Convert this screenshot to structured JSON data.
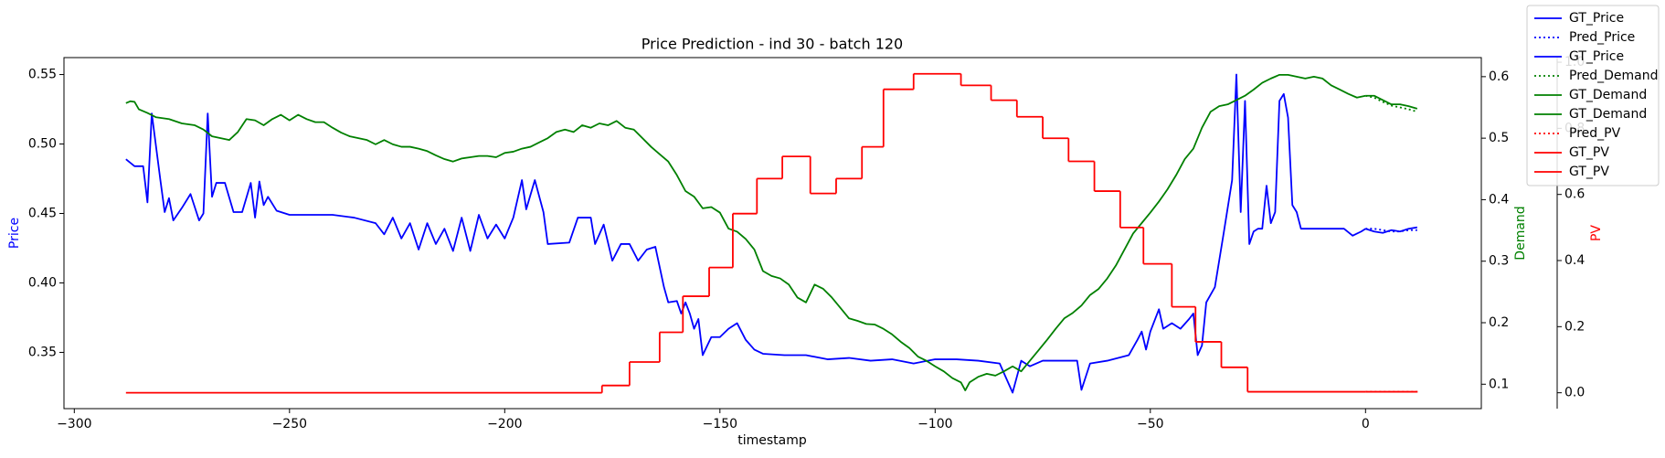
{
  "chart_data": {
    "type": "line",
    "title": "Price Prediction - ind 30 - batch 120",
    "xlabel": "timestamp",
    "ylabel": "Price",
    "ylabel_color": "#0000ff",
    "y2label": "Demand",
    "y2label_color": "#008000",
    "y3label": "PV",
    "y3label_color": "#ff0000",
    "xlim": [
      -302.4,
      26.9
    ],
    "ylim": [
      0.3095,
      0.5622
    ],
    "y2lim": [
      0.0603,
      0.631
    ],
    "y3lim": [
      -0.048,
      1.014
    ],
    "xticks": [
      {
        "value": -300,
        "label": "−300"
      },
      {
        "value": -250,
        "label": "−250"
      },
      {
        "value": -200,
        "label": "−200"
      },
      {
        "value": -150,
        "label": "−150"
      },
      {
        "value": -100,
        "label": "−100"
      },
      {
        "value": -50,
        "label": "−50"
      },
      0
    ],
    "yticks": [
      0.35,
      {
        "value": 0.4,
        "label": "0.40"
      },
      0.45,
      {
        "value": 0.5,
        "label": "0.50"
      },
      0.55
    ],
    "y2ticks": [
      0.1,
      0.2,
      0.3,
      0.4,
      0.5,
      0.6
    ],
    "y3ticks": [
      {
        "value": 0,
        "label": "0.0"
      },
      0.2,
      0.4,
      0.6,
      0.8,
      {
        "value": 1,
        "label": "1.0"
      }
    ],
    "legend": "upper right",
    "series": [
      {
        "name": "GT_Price",
        "color": "#0000ff",
        "linestyle": "solid",
        "axis": "y",
        "x": [
          -288,
          -286,
          -284,
          -283,
          -282,
          -280,
          -279,
          -278,
          -277,
          -275,
          -273,
          -271,
          -270,
          -269,
          -268,
          -267,
          -265,
          -263,
          -261,
          -259,
          -258,
          -257,
          -256,
          -255,
          -253,
          -250,
          -245,
          -240,
          -235,
          -230,
          -228,
          -226,
          -224,
          -222,
          -220,
          -218,
          -216,
          -214,
          -212,
          -210,
          -208,
          -206,
          -204,
          -202,
          -200,
          -198,
          -196,
          -195,
          -193,
          -191,
          -190,
          -185,
          -183,
          -180,
          -179,
          -177,
          -175,
          -173,
          -171,
          -169,
          -167,
          -165,
          -163,
          -162,
          -160,
          -159,
          -158,
          -157,
          -156,
          -155,
          -154,
          -152,
          -150,
          -148,
          -146,
          -144,
          -142,
          -140,
          -135,
          -130,
          -125,
          -120,
          -115,
          -110,
          -105,
          -100,
          -95,
          -90,
          -85,
          -82,
          -80,
          -78,
          -75,
          -70,
          -67,
          -66,
          -64,
          -60,
          -55,
          -53,
          -52,
          -51,
          -50,
          -48,
          -47,
          -45,
          -43,
          -41,
          -40,
          -39,
          -38,
          -37,
          -35,
          -33,
          -31,
          -30,
          -29,
          -28,
          -27,
          -26,
          -25,
          -24,
          -23,
          -22,
          -21,
          -20,
          -19,
          -18,
          -17,
          -16,
          -15,
          -10,
          -5,
          -3,
          -1,
          0
        ],
        "values": [
          0.489,
          0.484,
          0.484,
          0.458,
          0.522,
          0.474,
          0.451,
          0.461,
          0.445,
          0.454,
          0.464,
          0.445,
          0.45,
          0.522,
          0.462,
          0.472,
          0.472,
          0.451,
          0.451,
          0.472,
          0.447,
          0.473,
          0.456,
          0.462,
          0.452,
          0.449,
          0.449,
          0.449,
          0.447,
          0.443,
          0.435,
          0.447,
          0.432,
          0.443,
          0.424,
          0.443,
          0.428,
          0.439,
          0.423,
          0.447,
          0.423,
          0.449,
          0.432,
          0.442,
          0.432,
          0.447,
          0.474,
          0.453,
          0.474,
          0.451,
          0.428,
          0.429,
          0.447,
          0.447,
          0.428,
          0.442,
          0.416,
          0.428,
          0.428,
          0.416,
          0.424,
          0.426,
          0.397,
          0.386,
          0.387,
          0.378,
          0.386,
          0.378,
          0.367,
          0.374,
          0.348,
          0.361,
          0.361,
          0.367,
          0.371,
          0.359,
          0.352,
          0.349,
          0.348,
          0.348,
          0.345,
          0.346,
          0.344,
          0.345,
          0.342,
          0.345,
          0.345,
          0.344,
          0.342,
          0.321,
          0.344,
          0.34,
          0.344,
          0.344,
          0.344,
          0.323,
          0.342,
          0.344,
          0.348,
          0.359,
          0.365,
          0.352,
          0.365,
          0.381,
          0.367,
          0.371,
          0.367,
          0.374,
          0.378,
          0.348,
          0.355,
          0.386,
          0.397,
          0.435,
          0.474,
          0.55,
          0.451,
          0.531,
          0.428,
          0.437,
          0.439,
          0.439,
          0.47,
          0.443,
          0.451,
          0.531,
          0.536,
          0.519,
          0.456,
          0.451,
          0.439,
          0.439,
          0.439,
          0.434,
          0.437,
          0.439
        ]
      },
      {
        "name": "Pred_Price",
        "color": "#0000ff",
        "linestyle": "dotted",
        "axis": "y",
        "x": [
          0,
          2,
          4,
          6,
          8,
          10,
          12
        ],
        "values": [
          0.439,
          0.439,
          0.438,
          0.437,
          0.437,
          0.438,
          0.438
        ]
      },
      {
        "name": "GT_Price",
        "color": "#0000ff",
        "linestyle": "solid",
        "axis": "y",
        "x": [
          0,
          2,
          4,
          6,
          8,
          10,
          12
        ],
        "values": [
          0.439,
          0.437,
          0.436,
          0.438,
          0.437,
          0.439,
          0.44
        ]
      },
      {
        "name": "Pred_Demand",
        "color": "#008000",
        "linestyle": "dotted",
        "axis": "y2",
        "x": [
          0,
          2,
          4,
          6,
          8,
          10,
          12
        ],
        "values": [
          0.569,
          0.566,
          0.559,
          0.553,
          0.55,
          0.547,
          0.543
        ]
      },
      {
        "name": "GT_Demand",
        "color": "#008000",
        "linestyle": "solid",
        "axis": "y2",
        "x": [
          -288,
          -287,
          -286,
          -285,
          -283,
          -281,
          -278,
          -275,
          -272,
          -270,
          -268,
          -266,
          -264,
          -262,
          -260,
          -258,
          -256,
          -254,
          -252,
          -250,
          -248,
          -246,
          -244,
          -242,
          -240,
          -238,
          -236,
          -234,
          -232,
          -230,
          -228,
          -226,
          -224,
          -222,
          -220,
          -218,
          -216,
          -214,
          -212,
          -210,
          -208,
          -206,
          -204,
          -202,
          -200,
          -198,
          -196,
          -194,
          -192,
          -190,
          -188,
          -186,
          -184,
          -182,
          -180,
          -178,
          -176,
          -174,
          -172,
          -170,
          -168,
          -166,
          -164,
          -162,
          -160,
          -158,
          -156,
          -154,
          -152,
          -150,
          -148,
          -146,
          -144,
          -142,
          -140,
          -138,
          -136,
          -134,
          -132,
          -130,
          -128,
          -126,
          -124,
          -122,
          -120,
          -118,
          -116,
          -114,
          -112,
          -110,
          -108,
          -106,
          -104,
          -102,
          -100,
          -98,
          -96,
          -94,
          -93,
          -92,
          -90,
          -88,
          -86,
          -84,
          -82,
          -80,
          -78,
          -76,
          -74,
          -72,
          -70,
          -68,
          -66,
          -64,
          -62,
          -60,
          -58,
          -56,
          -54,
          -52,
          -50,
          -48,
          -46,
          -44,
          -42,
          -40,
          -38,
          -36,
          -34,
          -32,
          -30,
          -28,
          -26,
          -24,
          -22,
          -20,
          -18,
          -16,
          -14,
          -12,
          -10,
          -8,
          -6,
          -4,
          -2,
          0
        ],
        "values": [
          0.557,
          0.56,
          0.559,
          0.547,
          0.541,
          0.534,
          0.531,
          0.524,
          0.521,
          0.514,
          0.503,
          0.5,
          0.497,
          0.51,
          0.531,
          0.529,
          0.521,
          0.531,
          0.538,
          0.529,
          0.538,
          0.531,
          0.526,
          0.526,
          0.517,
          0.509,
          0.503,
          0.5,
          0.497,
          0.49,
          0.497,
          0.49,
          0.486,
          0.486,
          0.483,
          0.479,
          0.472,
          0.466,
          0.462,
          0.467,
          0.469,
          0.471,
          0.471,
          0.469,
          0.476,
          0.478,
          0.483,
          0.486,
          0.493,
          0.5,
          0.51,
          0.514,
          0.51,
          0.521,
          0.517,
          0.524,
          0.521,
          0.528,
          0.517,
          0.514,
          0.5,
          0.486,
          0.474,
          0.462,
          0.44,
          0.414,
          0.405,
          0.386,
          0.388,
          0.379,
          0.353,
          0.348,
          0.336,
          0.319,
          0.284,
          0.276,
          0.272,
          0.262,
          0.241,
          0.233,
          0.262,
          0.255,
          0.241,
          0.224,
          0.207,
          0.203,
          0.198,
          0.197,
          0.19,
          0.181,
          0.169,
          0.159,
          0.145,
          0.138,
          0.129,
          0.121,
          0.11,
          0.103,
          0.09,
          0.103,
          0.112,
          0.117,
          0.114,
          0.121,
          0.129,
          0.121,
          0.138,
          0.155,
          0.172,
          0.19,
          0.207,
          0.216,
          0.228,
          0.245,
          0.255,
          0.272,
          0.293,
          0.319,
          0.345,
          0.362,
          0.379,
          0.397,
          0.417,
          0.44,
          0.466,
          0.483,
          0.517,
          0.543,
          0.552,
          0.555,
          0.562,
          0.569,
          0.579,
          0.59,
          0.597,
          0.603,
          0.603,
          0.6,
          0.597,
          0.6,
          0.597,
          0.586,
          0.579,
          0.572,
          0.566,
          0.569
        ]
      },
      {
        "name": "GT_Demand",
        "color": "#008000",
        "linestyle": "solid",
        "axis": "y2",
        "x": [
          0,
          2,
          4,
          6,
          8,
          10,
          12
        ],
        "values": [
          0.569,
          0.569,
          0.562,
          0.555,
          0.555,
          0.552,
          0.548
        ]
      },
      {
        "name": "Pred_PV",
        "color": "#ff0000",
        "linestyle": "dotted",
        "axis": "y3",
        "drawstyle": "steps-post",
        "x": [
          0,
          12
        ],
        "values": [
          0.003,
          0.003
        ]
      },
      {
        "name": "GT_PV",
        "color": "#ff0000",
        "linestyle": "solid",
        "axis": "y3",
        "drawstyle": "steps-post",
        "x": [
          -288,
          -177.4,
          -171,
          -164,
          -158.6,
          -152.5,
          -147,
          -141.4,
          -135.5,
          -129,
          -123,
          -117,
          -112,
          -105,
          -94,
          -87,
          -81,
          -75,
          -69,
          -63,
          -57,
          -51.6,
          -45,
          -39.5,
          -33.5,
          -27.4,
          0
        ],
        "values": [
          0,
          0.022,
          0.093,
          0.183,
          0.292,
          0.379,
          0.542,
          0.648,
          0.715,
          0.603,
          0.648,
          0.744,
          0.918,
          0.965,
          0.93,
          0.885,
          0.835,
          0.77,
          0.7,
          0.61,
          0.5,
          0.39,
          0.26,
          0.154,
          0.077,
          0.003,
          0.003
        ]
      },
      {
        "name": "GT_PV",
        "color": "#ff0000",
        "linestyle": "solid",
        "axis": "y3",
        "drawstyle": "steps-post",
        "x": [
          0,
          12
        ],
        "values": [
          0.003,
          0.003
        ]
      }
    ]
  }
}
